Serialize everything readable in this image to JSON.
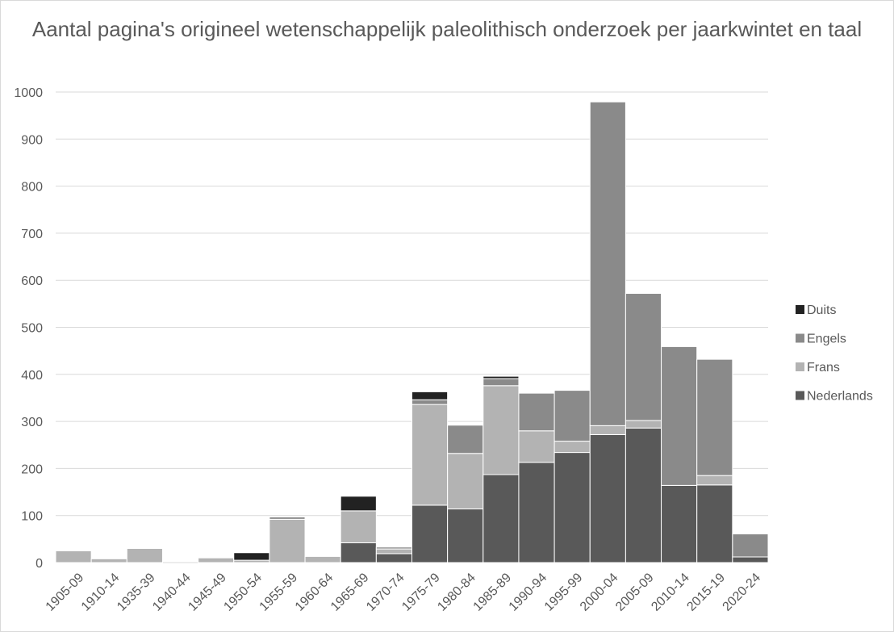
{
  "chart_data": {
    "type": "bar",
    "stacked": true,
    "title": "Aantal pagina's origineel wetenschappelijk paleolithisch onderzoek per jaarkwintet en taal",
    "xlabel": "",
    "ylabel": "",
    "ylim": [
      0,
      1000
    ],
    "yticks": [
      0,
      100,
      200,
      300,
      400,
      500,
      600,
      700,
      800,
      900,
      1000
    ],
    "grid": true,
    "legend_position": "right",
    "categories": [
      "1905-09",
      "1910-14",
      "1935-39",
      "1940-44",
      "1945-49",
      "1950-54",
      "1955-59",
      "1960-64",
      "1965-69",
      "1970-74",
      "1975-79",
      "1980-84",
      "1985-89",
      "1990-94",
      "1995-99",
      "2000-04",
      "2005-09",
      "2010-14",
      "2015-19",
      "2020-24"
    ],
    "series": [
      {
        "name": "Nederlands",
        "color": "#595959",
        "values": [
          0,
          0,
          0,
          0,
          0,
          0,
          0,
          0,
          42,
          19,
          122,
          114,
          187,
          213,
          234,
          272,
          286,
          164,
          165,
          12
        ]
      },
      {
        "name": "Frans",
        "color": "#b3b3b3",
        "values": [
          25,
          8,
          30,
          0,
          10,
          5,
          92,
          13,
          68,
          10,
          214,
          118,
          189,
          67,
          24,
          19,
          16,
          0,
          20,
          0
        ]
      },
      {
        "name": "Engels",
        "color": "#8a8a8a",
        "values": [
          0,
          0,
          0,
          0,
          0,
          0,
          5,
          0,
          0,
          4,
          10,
          60,
          15,
          80,
          108,
          688,
          270,
          295,
          247,
          49
        ]
      },
      {
        "name": "Duits",
        "color": "#222222",
        "values": [
          0,
          0,
          0,
          0,
          0,
          16,
          0,
          0,
          31,
          0,
          17,
          0,
          5,
          0,
          0,
          0,
          0,
          0,
          0,
          0
        ]
      }
    ],
    "legend_order": [
      "Duits",
      "Engels",
      "Frans",
      "Nederlands"
    ]
  }
}
